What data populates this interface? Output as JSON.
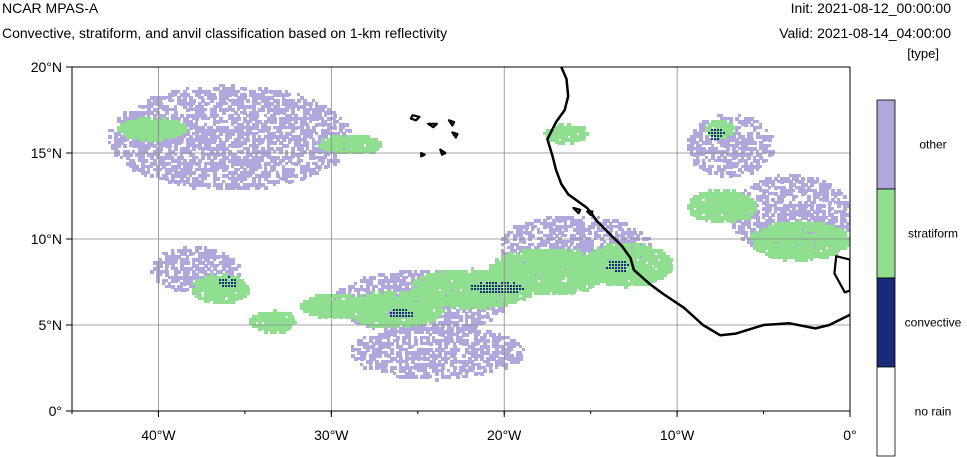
{
  "header": {
    "title": "NCAR MPAS-A",
    "subtitle": "Convective, stratiform, and anvil classification based on 1-km reflectivity",
    "init": "Init: 2021-08-12_00:00:00",
    "valid": "Valid: 2021-08-14_04:00:00",
    "units": "[type]"
  },
  "map": {
    "lon_range": [
      -45,
      0
    ],
    "lat_range": [
      0,
      20
    ],
    "gridlines": true,
    "x_ticks": [
      {
        "lon": -40,
        "label": "40°W"
      },
      {
        "lon": -30,
        "label": "30°W"
      },
      {
        "lon": -20,
        "label": "20°W"
      },
      {
        "lon": -10,
        "label": "10°W"
      },
      {
        "lon": 0,
        "label": "0°"
      }
    ],
    "y_ticks": [
      {
        "lat": 0,
        "label": "0°"
      },
      {
        "lat": 5,
        "label": "5°N"
      },
      {
        "lat": 10,
        "label": "10°N"
      },
      {
        "lat": 15,
        "label": "15°N"
      },
      {
        "lat": 20,
        "label": "20°N"
      }
    ],
    "coastline": [
      [
        -16.7,
        20.0
      ],
      [
        -16.4,
        19.3
      ],
      [
        -16.3,
        18.3
      ],
      [
        -16.5,
        17.5
      ],
      [
        -17.0,
        16.8
      ],
      [
        -17.5,
        15.8
      ],
      [
        -17.2,
        14.8
      ],
      [
        -17.0,
        14.0
      ],
      [
        -16.7,
        13.2
      ],
      [
        -16.3,
        12.6
      ],
      [
        -15.2,
        11.8
      ],
      [
        -14.6,
        11.0
      ],
      [
        -13.8,
        10.2
      ],
      [
        -13.2,
        9.6
      ],
      [
        -12.7,
        8.9
      ],
      [
        -12.5,
        8.2
      ],
      [
        -11.6,
        7.4
      ],
      [
        -10.8,
        6.8
      ],
      [
        -9.6,
        6.0
      ],
      [
        -8.5,
        5.0
      ],
      [
        -7.5,
        4.4
      ],
      [
        -6.6,
        4.5
      ],
      [
        -5.0,
        5.0
      ],
      [
        -3.5,
        5.1
      ],
      [
        -2.0,
        4.8
      ],
      [
        -1.2,
        5.0
      ],
      [
        0.0,
        5.6
      ]
    ],
    "islands": [
      [
        [
          -25.3,
          17.2
        ],
        [
          -24.9,
          17.1
        ],
        [
          -25.1,
          16.9
        ],
        [
          -25.4,
          17.0
        ]
      ],
      [
        [
          -24.4,
          16.7
        ],
        [
          -23.9,
          16.7
        ],
        [
          -24.1,
          16.5
        ]
      ],
      [
        [
          -23.2,
          16.9
        ],
        [
          -22.9,
          16.8
        ],
        [
          -23.0,
          16.6
        ]
      ],
      [
        [
          -23.0,
          16.2
        ],
        [
          -22.7,
          16.1
        ],
        [
          -22.8,
          15.9
        ]
      ],
      [
        [
          -24.8,
          15.0
        ],
        [
          -24.6,
          14.9
        ],
        [
          -24.8,
          14.8
        ]
      ],
      [
        [
          -23.7,
          15.2
        ],
        [
          -23.4,
          15.0
        ],
        [
          -23.6,
          14.9
        ]
      ],
      [
        [
          -16.0,
          11.8
        ],
        [
          -15.6,
          11.7
        ],
        [
          -15.7,
          11.5
        ]
      ],
      [
        [
          -15.2,
          11.6
        ],
        [
          -14.9,
          11.6
        ],
        [
          -15.0,
          11.4
        ]
      ],
      [
        [
          -0.8,
          9.0
        ],
        [
          0.0,
          8.8
        ],
        [
          0.0,
          7.0
        ],
        [
          -0.3,
          6.9
        ],
        [
          -0.9,
          8.0
        ]
      ]
    ],
    "field_types": {
      "other": "#B0A8DD",
      "stratiform": "#90DE90",
      "convective": "#1A2A7A",
      "no_rain": "#ffffff"
    },
    "precip_regions": [
      {
        "type": "stratiform",
        "lon": -36.5,
        "lat": 7.2,
        "rx": 1.6,
        "ry": 0.8
      },
      {
        "type": "stratiform",
        "lon": -33.5,
        "lat": 5.3,
        "rx": 1.3,
        "ry": 0.6
      },
      {
        "type": "stratiform",
        "lon": -30.0,
        "lat": 6.2,
        "rx": 1.8,
        "ry": 0.7
      },
      {
        "type": "stratiform",
        "lon": -26.5,
        "lat": 6.0,
        "rx": 2.8,
        "ry": 1.0
      },
      {
        "type": "stratiform",
        "lon": -22.0,
        "lat": 7.2,
        "rx": 3.5,
        "ry": 1.1
      },
      {
        "type": "stratiform",
        "lon": -17.5,
        "lat": 8.2,
        "rx": 3.5,
        "ry": 1.3
      },
      {
        "type": "stratiform",
        "lon": -13.0,
        "lat": 8.6,
        "rx": 2.6,
        "ry": 1.2
      },
      {
        "type": "stratiform",
        "lon": -7.5,
        "lat": 12.0,
        "rx": 2.0,
        "ry": 0.9
      },
      {
        "type": "stratiform",
        "lon": -3.0,
        "lat": 10.0,
        "rx": 2.8,
        "ry": 1.1
      },
      {
        "type": "stratiform",
        "lon": -7.6,
        "lat": 16.5,
        "rx": 0.8,
        "ry": 0.5
      },
      {
        "type": "stratiform",
        "lon": -40.5,
        "lat": 16.5,
        "rx": 2.0,
        "ry": 0.6
      },
      {
        "type": "stratiform",
        "lon": -29.0,
        "lat": 15.6,
        "rx": 1.8,
        "ry": 0.5
      },
      {
        "type": "stratiform",
        "lon": -16.5,
        "lat": 16.2,
        "rx": 1.2,
        "ry": 0.5
      },
      {
        "type": "other",
        "lon": -38.0,
        "lat": 8.3,
        "rx": 2.6,
        "ry": 1.3
      },
      {
        "type": "other",
        "lon": -25.0,
        "lat": 6.4,
        "rx": 5.0,
        "ry": 1.8
      },
      {
        "type": "other",
        "lon": -16.0,
        "lat": 9.5,
        "rx": 4.5,
        "ry": 2.0
      },
      {
        "type": "other",
        "lon": -3.5,
        "lat": 11.5,
        "rx": 3.5,
        "ry": 2.3
      },
      {
        "type": "other",
        "lon": -36.0,
        "lat": 16.0,
        "rx": 7.0,
        "ry": 3.0
      },
      {
        "type": "other",
        "lon": -7.0,
        "lat": 15.5,
        "rx": 2.5,
        "ry": 1.8
      },
      {
        "type": "other",
        "lon": -24.0,
        "lat": 3.5,
        "rx": 5.0,
        "ry": 1.5
      },
      {
        "type": "convective",
        "lon": -36.0,
        "lat": 7.5,
        "rx": 0.5,
        "ry": 0.3
      },
      {
        "type": "convective",
        "lon": -20.5,
        "lat": 7.2,
        "rx": 1.5,
        "ry": 0.3
      },
      {
        "type": "convective",
        "lon": -26.0,
        "lat": 5.7,
        "rx": 0.7,
        "ry": 0.2
      },
      {
        "type": "convective",
        "lon": -7.8,
        "lat": 16.2,
        "rx": 0.4,
        "ry": 0.3
      },
      {
        "type": "convective",
        "lon": -13.5,
        "lat": 8.5,
        "rx": 0.6,
        "ry": 0.3
      }
    ]
  },
  "colorbar": {
    "entries": [
      {
        "label": "other",
        "color": "#B0A8DD"
      },
      {
        "label": "stratiform",
        "color": "#90DE90"
      },
      {
        "label": "convective",
        "color": "#1A2A7A"
      },
      {
        "label": "no rain",
        "color": "#ffffff"
      }
    ]
  }
}
